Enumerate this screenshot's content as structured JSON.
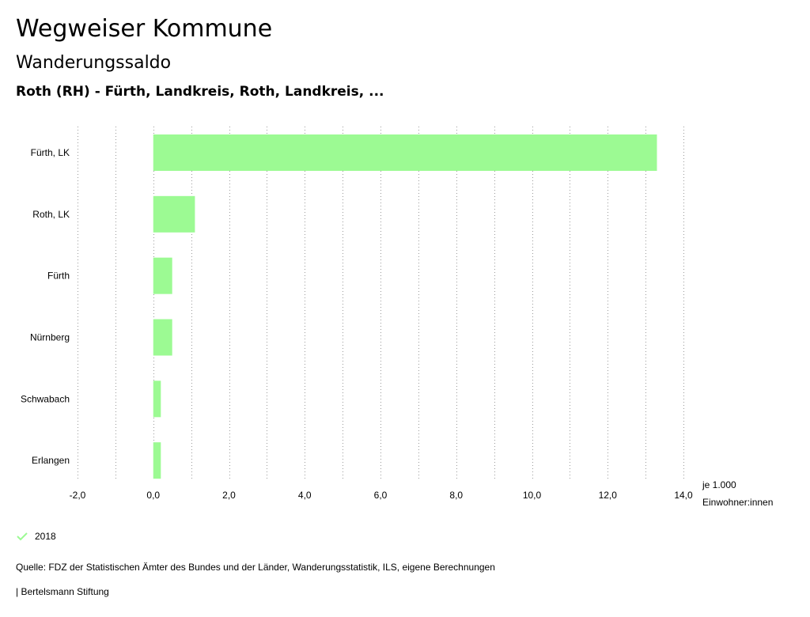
{
  "header": {
    "title": "Wegweiser Kommune",
    "subtitle": "Wanderungssaldo",
    "region": "Roth (RH) - Fürth, Landkreis, Roth, Landkreis, ..."
  },
  "chart_data": {
    "type": "bar",
    "orientation": "horizontal",
    "categories": [
      "Fürth, LK",
      "Roth, LK",
      "Fürth",
      "Nürnberg",
      "Schwabach",
      "Erlangen"
    ],
    "series": [
      {
        "name": "2018",
        "color": "#9cfa93",
        "values": [
          13.3,
          1.1,
          0.5,
          0.5,
          0.2,
          0.2
        ]
      }
    ],
    "xlim": [
      -2.0,
      14.0
    ],
    "x_ticks": [
      "-2,0",
      "0,0",
      "2,0",
      "4,0",
      "6,0",
      "8,0",
      "10,0",
      "12,0",
      "14,0"
    ],
    "unit_label": [
      "je 1.000",
      "Einwohner:innen"
    ],
    "grid": true,
    "legend_position": "bottom-left"
  },
  "legend": {
    "label": "2018",
    "icon": "check-icon"
  },
  "footer": {
    "source": "Quelle: FDZ der Statistischen Ämter des Bundes und der Länder, Wanderungsstatistik, ILS, eigene Berechnungen",
    "credit": "| Bertelsmann Stiftung"
  }
}
